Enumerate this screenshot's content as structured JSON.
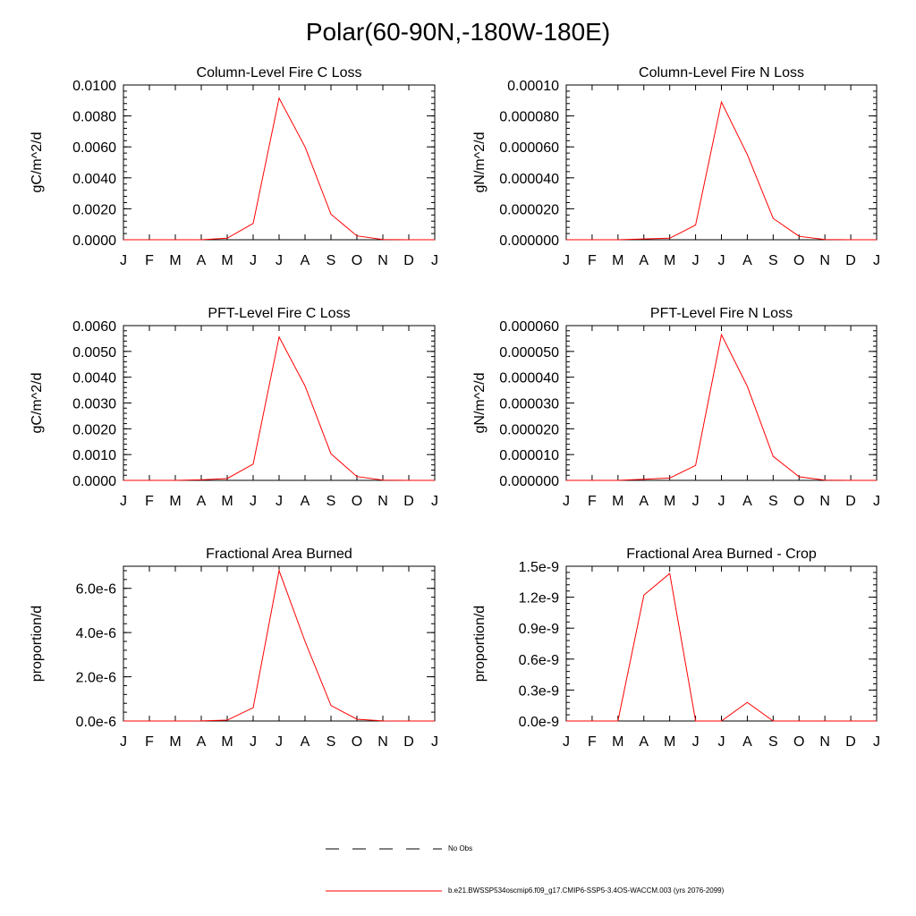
{
  "page_title": "Polar(60-90N,-180W-180E)",
  "legend": {
    "obs_label": "No Obs",
    "model_label": "b.e21.BWSSP534oscmip6.f09_g17.CMIP6-SSP5-3.4OS-WACCM.003 (yrs 2076-2099)",
    "model_color": "#ff0000",
    "obs_color": "#000000"
  },
  "chart_data": [
    {
      "type": "line",
      "title": "Column-Level Fire C Loss",
      "ylabel": "gC/m^2/d",
      "ylim": [
        0,
        0.01
      ],
      "yticks": [
        "0.0000",
        "0.0020",
        "0.0040",
        "0.0060",
        "0.0080",
        "0.0100"
      ],
      "categories": [
        "J",
        "F",
        "M",
        "A",
        "M",
        "J",
        "J",
        "A",
        "S",
        "O",
        "N",
        "D",
        "J"
      ],
      "series": [
        {
          "color": "#ff0000",
          "values": [
            0,
            0,
            0,
            0,
            0.0001,
            0.00105,
            0.00915,
            0.006,
            0.00165,
            0.00025,
            1e-05,
            0,
            0
          ]
        }
      ]
    },
    {
      "type": "line",
      "title": "Column-Level Fire N Loss",
      "ylabel": "gN/m^2/d",
      "ylim": [
        0,
        0.0001
      ],
      "yticks": [
        "0.000000",
        "0.000020",
        "0.000040",
        "0.000060",
        "0.000080",
        "0.00010"
      ],
      "categories": [
        "J",
        "F",
        "M",
        "A",
        "M",
        "J",
        "J",
        "A",
        "S",
        "O",
        "N",
        "D",
        "J"
      ],
      "series": [
        {
          "color": "#ff0000",
          "values": [
            0,
            0,
            0,
            5e-07,
            1e-06,
            9.5e-06,
            8.9e-05,
            5.5e-05,
            1.38e-05,
            2.2e-06,
            1e-07,
            0,
            0
          ]
        }
      ]
    },
    {
      "type": "line",
      "title": "PFT-Level Fire C Loss",
      "ylabel": "gC/m^2/d",
      "ylim": [
        0,
        0.006
      ],
      "yticks": [
        "0.0000",
        "0.0010",
        "0.0020",
        "0.0030",
        "0.0040",
        "0.0050",
        "0.0060"
      ],
      "categories": [
        "J",
        "F",
        "M",
        "A",
        "M",
        "J",
        "J",
        "A",
        "S",
        "O",
        "N",
        "D",
        "J"
      ],
      "series": [
        {
          "color": "#ff0000",
          "values": [
            0,
            0,
            0,
            2e-05,
            7e-05,
            0.00063,
            0.00556,
            0.00366,
            0.00103,
            0.00015,
            1e-05,
            0,
            0
          ]
        }
      ]
    },
    {
      "type": "line",
      "title": "PFT-Level Fire N Loss",
      "ylabel": "gN/m^2/d",
      "ylim": [
        0,
        6e-05
      ],
      "yticks": [
        "0.000000",
        "0.000010",
        "0.000020",
        "0.000030",
        "0.000040",
        "0.000050",
        "0.000060"
      ],
      "categories": [
        "J",
        "F",
        "M",
        "A",
        "M",
        "J",
        "J",
        "A",
        "S",
        "O",
        "N",
        "D",
        "J"
      ],
      "series": [
        {
          "color": "#ff0000",
          "values": [
            0,
            0,
            0,
            4e-07,
            9e-07,
            5.8e-06,
            5.65e-05,
            3.65e-05,
            9.3e-06,
            1.4e-06,
            1e-07,
            0,
            0
          ]
        }
      ]
    },
    {
      "type": "line",
      "title": "Fractional Area Burned",
      "ylabel": "proportion/d",
      "ylim": [
        0,
        7e-06
      ],
      "yticks": [
        "0.0e-6",
        "2.0e-6",
        "4.0e-6",
        "6.0e-6"
      ],
      "ytick_values": [
        0,
        2e-06,
        4e-06,
        6e-06
      ],
      "categories": [
        "J",
        "F",
        "M",
        "A",
        "M",
        "J",
        "J",
        "A",
        "S",
        "O",
        "N",
        "D",
        "J"
      ],
      "series": [
        {
          "color": "#ff0000",
          "values": [
            0,
            0,
            0,
            5e-09,
            4e-08,
            6e-07,
            6.8e-06,
            3.6e-06,
            7e-07,
            8e-08,
            5e-09,
            0,
            0
          ]
        }
      ]
    },
    {
      "type": "line",
      "title": "Fractional Area Burned - Crop",
      "ylabel": "proportion/d",
      "ylim": [
        0,
        1.5e-09
      ],
      "yticks": [
        "0.0e-9",
        "0.3e-9",
        "0.6e-9",
        "0.9e-9",
        "1.2e-9",
        "1.5e-9"
      ],
      "categories": [
        "J",
        "F",
        "M",
        "A",
        "M",
        "J",
        "J",
        "A",
        "S",
        "O",
        "N",
        "D",
        "J"
      ],
      "series": [
        {
          "color": "#ff0000",
          "values": [
            0,
            0,
            0,
            1.22e-09,
            1.43e-09,
            0,
            0,
            1.8e-10,
            0,
            0,
            0,
            0,
            0
          ]
        }
      ]
    }
  ]
}
